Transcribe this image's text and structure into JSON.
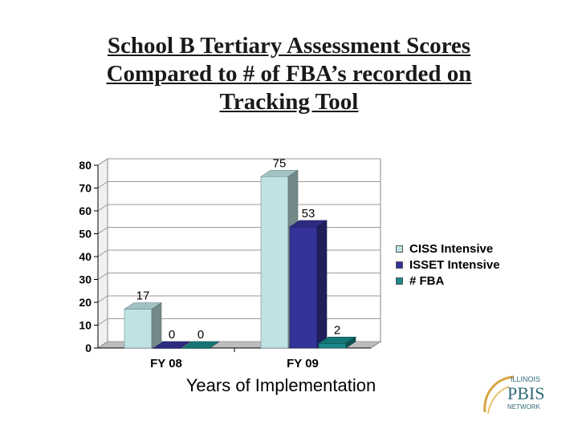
{
  "title_lines": [
    "School B Tertiary Assessment Scores",
    "Compared to # of FBA’s recorded on",
    "Tracking  Tool"
  ],
  "logo": {
    "line1": "ILLINOIS",
    "line2": "PBIS",
    "line3": "NETWORK"
  },
  "colors": {
    "ciss": "#bfe3e4",
    "isset": "#343399",
    "fba": "#1a8a8a"
  },
  "chart_data": {
    "type": "bar",
    "title": "School B Tertiary Assessment Scores Compared to # of FBA’s recorded on Tracking  Tool",
    "categories": [
      "FY 08",
      "FY 09"
    ],
    "series": [
      {
        "name": "CISS Intensive",
        "values": [
          17,
          75
        ]
      },
      {
        "name": "ISSET Intensive",
        "values": [
          0,
          53
        ]
      },
      {
        "name": "# FBA",
        "values": [
          0,
          2
        ]
      }
    ],
    "xlabel": "Years of Implementation",
    "ylabel": "",
    "ylim": [
      0,
      80
    ],
    "yticks": [
      0,
      10,
      20,
      30,
      40,
      50,
      60,
      70,
      80
    ],
    "legend_position": "right",
    "grid": true
  }
}
